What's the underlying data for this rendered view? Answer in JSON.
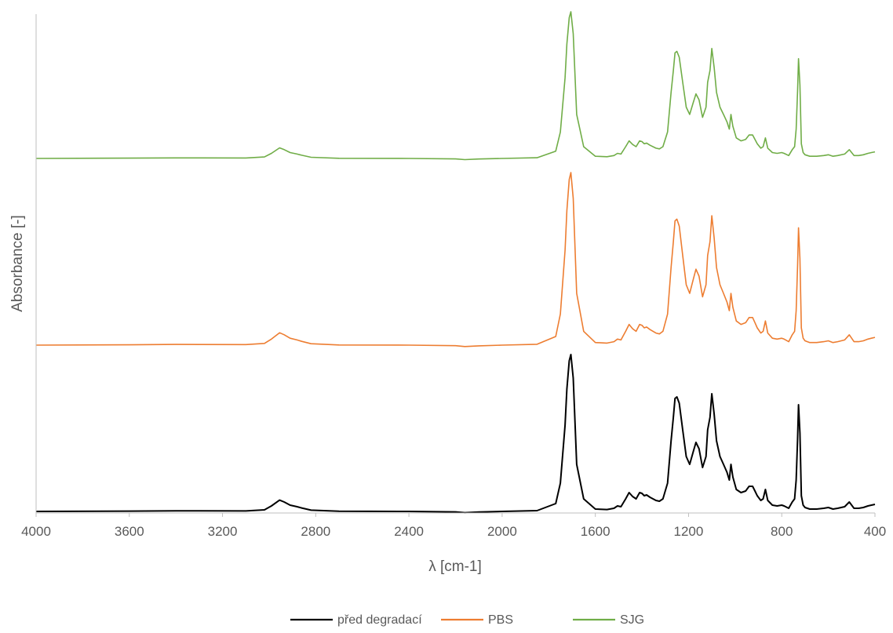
{
  "chart_data": {
    "type": "line",
    "title": "",
    "xlabel": "λ [cm-1]",
    "ylabel": "Absorbance [-]",
    "x_reversed": true,
    "xlim": [
      4000,
      400
    ],
    "x_ticks": [
      "4000",
      "3600",
      "3200",
      "2800",
      "2400",
      "2000",
      "1600",
      "1200",
      "800",
      "400"
    ],
    "y_ticks_shown": false,
    "grid": false,
    "legend_position": "bottom",
    "peaks": {
      "x": [
        4000,
        3600,
        3400,
        3100,
        3020,
        2990,
        2955,
        2935,
        2910,
        2880,
        2860,
        2820,
        2700,
        2400,
        2200,
        2160,
        2100,
        2000,
        1850,
        1770,
        1750,
        1730,
        1722,
        1712,
        1705,
        1695,
        1680,
        1650,
        1600,
        1550,
        1520,
        1505,
        1490,
        1470,
        1455,
        1440,
        1425,
        1410,
        1400,
        1390,
        1380,
        1365,
        1340,
        1325,
        1310,
        1290,
        1275,
        1265,
        1258,
        1250,
        1240,
        1225,
        1210,
        1195,
        1180,
        1168,
        1155,
        1140,
        1125,
        1118,
        1108,
        1100,
        1090,
        1080,
        1065,
        1050,
        1035,
        1025,
        1018,
        1010,
        995,
        975,
        955,
        940,
        925,
        915,
        905,
        890,
        880,
        870,
        860,
        840,
        820,
        800,
        790,
        770,
        755,
        745,
        738,
        732,
        728,
        722,
        716,
        708,
        700,
        680,
        650,
        620,
        600,
        580,
        560,
        530,
        510,
        500,
        490,
        470,
        450,
        430,
        415,
        400
      ]
    },
    "series": [
      {
        "name": "před degradací",
        "color": "#000000",
        "values": [
          0.0,
          0.002,
          0.004,
          0.003,
          0.01,
          0.035,
          0.072,
          0.06,
          0.04,
          0.03,
          0.022,
          0.008,
          0.001,
          0.0,
          -0.003,
          -0.008,
          -0.004,
          0.0,
          0.005,
          0.05,
          0.18,
          0.55,
          0.78,
          0.96,
          1.0,
          0.85,
          0.3,
          0.08,
          0.015,
          0.012,
          0.02,
          0.035,
          0.03,
          0.08,
          0.12,
          0.095,
          0.08,
          0.12,
          0.115,
          0.1,
          0.105,
          0.09,
          0.07,
          0.065,
          0.08,
          0.18,
          0.45,
          0.6,
          0.72,
          0.73,
          0.69,
          0.52,
          0.35,
          0.3,
          0.38,
          0.44,
          0.4,
          0.28,
          0.35,
          0.52,
          0.6,
          0.75,
          0.62,
          0.45,
          0.35,
          0.3,
          0.25,
          0.2,
          0.3,
          0.22,
          0.14,
          0.12,
          0.13,
          0.16,
          0.16,
          0.13,
          0.1,
          0.07,
          0.08,
          0.14,
          0.07,
          0.04,
          0.035,
          0.04,
          0.035,
          0.02,
          0.06,
          0.08,
          0.2,
          0.46,
          0.68,
          0.5,
          0.1,
          0.04,
          0.025,
          0.015,
          0.015,
          0.02,
          0.025,
          0.015,
          0.02,
          0.03,
          0.06,
          0.04,
          0.02,
          0.02,
          0.025,
          0.035,
          0.04,
          0.045
        ]
      },
      {
        "name": "PBS",
        "color": "#ED7D31",
        "values": [
          0.0,
          0.002,
          0.004,
          0.003,
          0.01,
          0.035,
          0.072,
          0.06,
          0.04,
          0.03,
          0.022,
          0.008,
          0.001,
          0.0,
          -0.003,
          -0.008,
          -0.004,
          0.0,
          0.005,
          0.05,
          0.18,
          0.55,
          0.78,
          0.96,
          1.0,
          0.85,
          0.3,
          0.08,
          0.015,
          0.012,
          0.02,
          0.035,
          0.03,
          0.08,
          0.12,
          0.095,
          0.08,
          0.12,
          0.115,
          0.1,
          0.105,
          0.09,
          0.07,
          0.065,
          0.08,
          0.18,
          0.45,
          0.6,
          0.72,
          0.73,
          0.69,
          0.52,
          0.35,
          0.3,
          0.38,
          0.44,
          0.4,
          0.28,
          0.35,
          0.52,
          0.6,
          0.75,
          0.62,
          0.45,
          0.35,
          0.3,
          0.25,
          0.2,
          0.3,
          0.22,
          0.14,
          0.12,
          0.13,
          0.16,
          0.16,
          0.13,
          0.1,
          0.07,
          0.08,
          0.14,
          0.07,
          0.04,
          0.035,
          0.04,
          0.035,
          0.02,
          0.06,
          0.08,
          0.2,
          0.46,
          0.68,
          0.5,
          0.1,
          0.04,
          0.025,
          0.015,
          0.015,
          0.02,
          0.025,
          0.015,
          0.02,
          0.03,
          0.06,
          0.04,
          0.02,
          0.02,
          0.025,
          0.035,
          0.04,
          0.045
        ]
      },
      {
        "name": "SJG",
        "color": "#70AD47",
        "values": [
          0.0,
          0.002,
          0.004,
          0.003,
          0.01,
          0.035,
          0.072,
          0.06,
          0.04,
          0.03,
          0.022,
          0.008,
          0.001,
          0.0,
          -0.003,
          -0.008,
          -0.004,
          0.0,
          0.005,
          0.05,
          0.18,
          0.55,
          0.78,
          0.96,
          1.0,
          0.85,
          0.3,
          0.08,
          0.015,
          0.012,
          0.02,
          0.035,
          0.03,
          0.08,
          0.12,
          0.095,
          0.08,
          0.12,
          0.115,
          0.1,
          0.105,
          0.09,
          0.07,
          0.065,
          0.08,
          0.18,
          0.45,
          0.6,
          0.72,
          0.73,
          0.69,
          0.52,
          0.35,
          0.3,
          0.38,
          0.44,
          0.4,
          0.28,
          0.35,
          0.52,
          0.6,
          0.75,
          0.62,
          0.45,
          0.35,
          0.3,
          0.25,
          0.2,
          0.3,
          0.22,
          0.14,
          0.12,
          0.13,
          0.16,
          0.16,
          0.13,
          0.1,
          0.07,
          0.08,
          0.14,
          0.07,
          0.04,
          0.035,
          0.04,
          0.035,
          0.02,
          0.06,
          0.08,
          0.2,
          0.46,
          0.68,
          0.5,
          0.1,
          0.04,
          0.025,
          0.015,
          0.015,
          0.02,
          0.025,
          0.015,
          0.02,
          0.03,
          0.06,
          0.04,
          0.02,
          0.02,
          0.025,
          0.035,
          0.04,
          0.045
        ]
      }
    ]
  }
}
